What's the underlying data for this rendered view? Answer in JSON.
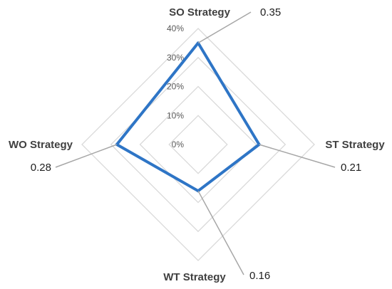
{
  "chart_data": {
    "type": "radar",
    "categories": [
      "SO Strategy",
      "ST Strategy",
      "WT Strategy",
      "WO Strategy"
    ],
    "series": [
      {
        "values": [
          0.35,
          0.21,
          0.16,
          0.28
        ]
      }
    ],
    "data_labels": [
      "0.35",
      "0.21",
      "0.16",
      "0.28"
    ],
    "tick_labels": [
      "0%",
      "10%",
      "20%",
      "30%",
      "40%"
    ],
    "ticks": [
      0,
      0.1,
      0.2,
      0.3,
      0.4
    ],
    "ylim": [
      0,
      0.4
    ],
    "grid": true,
    "colors": {
      "series": "#2E75C6",
      "grid": "#D9D9D9",
      "leader": "#A6A6A6"
    }
  }
}
